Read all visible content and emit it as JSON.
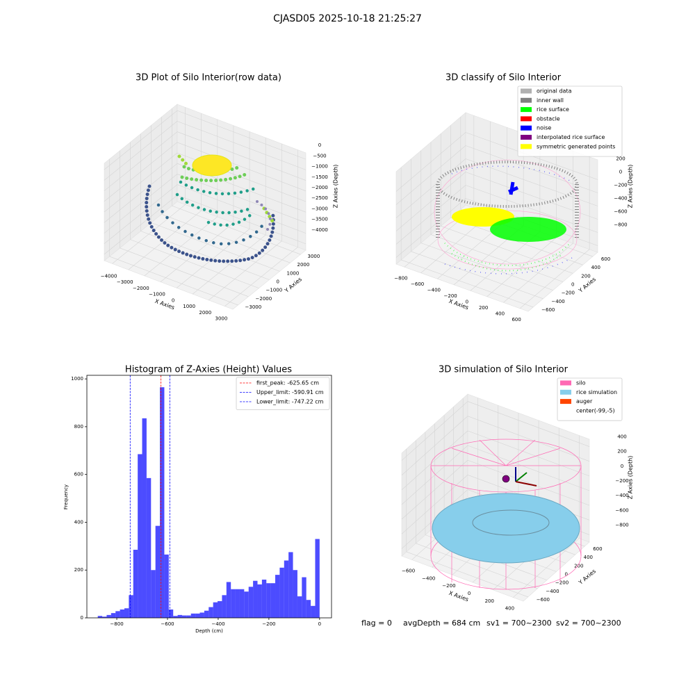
{
  "title": "CJASD05 2025-10-18 21:25:27",
  "footer": [
    "flag = 0",
    "avgDepth = 684 cm",
    "sv1 = 700~2300",
    "sv2 = 700~2300"
  ],
  "chart_data": [
    {
      "type": "scatter3d",
      "title": "3D Plot of Silo Interior(row data)",
      "xlabel": "X Axies",
      "ylabel": "Y Axies",
      "zlabel": "Z Axies (Depth)",
      "xlim": [
        -4500,
        3500
      ],
      "xticks": [
        {
          "value": -4000,
          "label": "−4000"
        },
        {
          "value": -3000,
          "label": "−3000"
        },
        {
          "value": -2000,
          "label": "−2000"
        },
        {
          "value": -1000,
          "label": "−1000"
        },
        0,
        1000,
        2000,
        3000
      ],
      "ylim": [
        -3500,
        3500
      ],
      "yticks": [
        {
          "value": -3000,
          "label": "−3000"
        },
        {
          "value": -2000,
          "label": "−2000"
        },
        {
          "value": -1000,
          "label": "−1000"
        },
        0,
        1000,
        2000,
        3000
      ],
      "zlim": [
        -4300,
        300
      ],
      "zticks": [
        0,
        {
          "value": -500,
          "label": "−500"
        },
        {
          "value": -1000,
          "label": "−1000"
        },
        {
          "value": -1500,
          "label": "−1500"
        },
        {
          "value": -2000,
          "label": "−2000"
        },
        {
          "value": -2500,
          "label": "−2500"
        },
        {
          "value": -3000,
          "label": "−3000"
        },
        {
          "value": -3500,
          "label": "−3500"
        },
        {
          "value": -4000,
          "label": "−4000"
        }
      ]
    },
    {
      "type": "scatter3d",
      "title": "3D classify of Silo Interior",
      "xlabel": "X Axies",
      "ylabel": "Y Axies",
      "zlabel": "Z Axies (Depth)",
      "xlim": [
        -900,
        700
      ],
      "xticks": [
        {
          "value": -800,
          "label": "−800"
        },
        {
          "value": -600,
          "label": "−600"
        },
        {
          "value": -400,
          "label": "−400"
        },
        {
          "value": -200,
          "label": "−200"
        },
        0,
        200,
        400,
        600
      ],
      "ylim": [
        -700,
        700
      ],
      "yticks": [
        {
          "value": -600,
          "label": "−600"
        },
        {
          "value": -400,
          "label": "−400"
        },
        {
          "value": -200,
          "label": "−200"
        },
        0,
        200,
        400,
        600
      ],
      "zlim": [
        -900,
        500
      ],
      "zticks": [
        200,
        0,
        {
          "value": -200,
          "label": "−200"
        },
        {
          "value": -400,
          "label": "−400"
        },
        {
          "value": -600,
          "label": "−600"
        },
        {
          "value": -800,
          "label": "−800"
        }
      ],
      "legend": "upper right",
      "series": [
        {
          "name": "original data",
          "color": "#b0b0b0"
        },
        {
          "name": "inner wall",
          "color": "#808080"
        },
        {
          "name": "rice surface",
          "color": "#00ff00"
        },
        {
          "name": "obstacle",
          "color": "#ff0000"
        },
        {
          "name": "noise",
          "color": "#0000ff"
        },
        {
          "name": "interpolated rice surface",
          "color": "#800080"
        },
        {
          "name": "symmetric generated points",
          "color": "#ffff00"
        }
      ]
    },
    {
      "type": "histogram",
      "title": "Histogram of Z-Axies (Height) Values",
      "xlabel": "Depth (cm)",
      "ylabel": "Frequency",
      "color": "#0000ff",
      "bins": [
        -875,
        -857.5,
        -840,
        -822.5,
        -805,
        -787.5,
        -770,
        -752.5,
        -735,
        -717.5,
        -700,
        -682.5,
        -665,
        -647.5,
        -630,
        -612.5,
        -595,
        -577.5,
        -560,
        -542.5,
        -525,
        -507.5,
        -490,
        -472.5,
        -455,
        -437.5,
        -420,
        -402.5,
        -385,
        -367.5,
        -350,
        -332.5,
        -315,
        -297.5,
        -280,
        -262.5,
        -245,
        -227.5,
        -210,
        -192.5,
        -175,
        -157.5,
        -140,
        -122.5,
        -105,
        -87.5,
        -70,
        -52.5,
        -35,
        -17.5,
        0
      ],
      "values": [
        8,
        5,
        12,
        20,
        28,
        35,
        40,
        95,
        285,
        685,
        835,
        585,
        200,
        385,
        965,
        265,
        35,
        8,
        12,
        10,
        10,
        18,
        18,
        22,
        30,
        45,
        65,
        70,
        95,
        150,
        120,
        120,
        120,
        110,
        130,
        155,
        140,
        160,
        145,
        145,
        180,
        210,
        240,
        275,
        200,
        90,
        170,
        75,
        50,
        330
      ],
      "xlim": [
        -918,
        47
      ],
      "xticks": [
        {
          "value": -800,
          "label": "−800"
        },
        {
          "value": -600,
          "label": "−600"
        },
        {
          "value": -400,
          "label": "−400"
        },
        {
          "value": -200,
          "label": "−200"
        },
        0
      ],
      "ylim": [
        0,
        1015
      ],
      "yticks": [
        0,
        200,
        400,
        600,
        800,
        1000
      ],
      "legend": "upper right",
      "vlines": [
        {
          "name": "first_peak: -625.65 cm",
          "value": -625.65,
          "color": "#ff0000"
        },
        {
          "name": "Upper_limit: -590.91 cm",
          "value": -590.91,
          "color": "#0000ff"
        },
        {
          "name": "Lower_limit: -747.22 cm",
          "value": -747.22,
          "color": "#0000ff"
        }
      ]
    },
    {
      "type": "surface3d",
      "title": "3D simulation of Silo Interior",
      "xlabel": "X Axies",
      "ylabel": "Y Axies",
      "zlabel": "Z Axies (Depth)",
      "xlim": [
        -700,
        500
      ],
      "xticks": [
        {
          "value": -600,
          "label": "−600"
        },
        {
          "value": -400,
          "label": "−400"
        },
        {
          "value": -200,
          "label": "−200"
        },
        0,
        200,
        400
      ],
      "ylim": [
        -700,
        700
      ],
      "yticks": [
        {
          "value": -600,
          "label": "−600"
        },
        {
          "value": -400,
          "label": "−400"
        },
        {
          "value": -200,
          "label": "−200"
        },
        0,
        200,
        400,
        600
      ],
      "zlim": [
        -900,
        500
      ],
      "zticks": [
        400,
        200,
        0,
        {
          "value": -200,
          "label": "−200"
        },
        {
          "value": -400,
          "label": "−400"
        },
        {
          "value": -600,
          "label": "−600"
        },
        {
          "value": -800,
          "label": "−800"
        }
      ],
      "legend": "upper right",
      "series": [
        {
          "name": "silo",
          "color": "#ff69b4"
        },
        {
          "name": "rice simulation",
          "color": "#87ceeb"
        },
        {
          "name": "auger",
          "color": "#ff4500"
        },
        {
          "name": "center(-99,-5)",
          "color": "#ffffff"
        }
      ]
    }
  ]
}
